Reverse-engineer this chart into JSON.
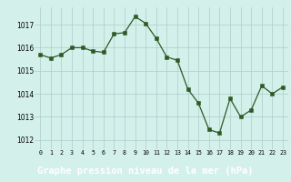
{
  "x": [
    0,
    1,
    2,
    3,
    4,
    5,
    6,
    7,
    8,
    9,
    10,
    11,
    12,
    13,
    14,
    15,
    16,
    17,
    18,
    19,
    20,
    21,
    22,
    23
  ],
  "y": [
    1015.7,
    1015.55,
    1015.7,
    1016.0,
    1016.0,
    1015.85,
    1015.8,
    1016.6,
    1016.65,
    1017.35,
    1017.05,
    1016.4,
    1015.6,
    1015.45,
    1014.2,
    1013.6,
    1012.45,
    1012.3,
    1013.8,
    1013.0,
    1013.3,
    1014.35,
    1014.0,
    1014.3
  ],
  "line_color": "#2d5a27",
  "marker_color": "#2d5a27",
  "bg_color": "#d4f0eb",
  "grid_color": "#b0ccc8",
  "xlabel": "Graphe pression niveau de la mer (hPa)",
  "xlabel_bg": "#3a7a30",
  "xlabel_fg": "#ffffff",
  "xlabel_fontsize": 7.5,
  "ylabel_ticks": [
    1012,
    1013,
    1014,
    1015,
    1016,
    1017
  ],
  "xtick_labels": [
    "0",
    "1",
    "2",
    "3",
    "4",
    "5",
    "6",
    "7",
    "8",
    "9",
    "10",
    "11",
    "12",
    "13",
    "14",
    "15",
    "16",
    "17",
    "18",
    "19",
    "20",
    "21",
    "22",
    "23"
  ],
  "ylim": [
    1011.6,
    1017.75
  ],
  "xlim": [
    -0.5,
    23.5
  ]
}
